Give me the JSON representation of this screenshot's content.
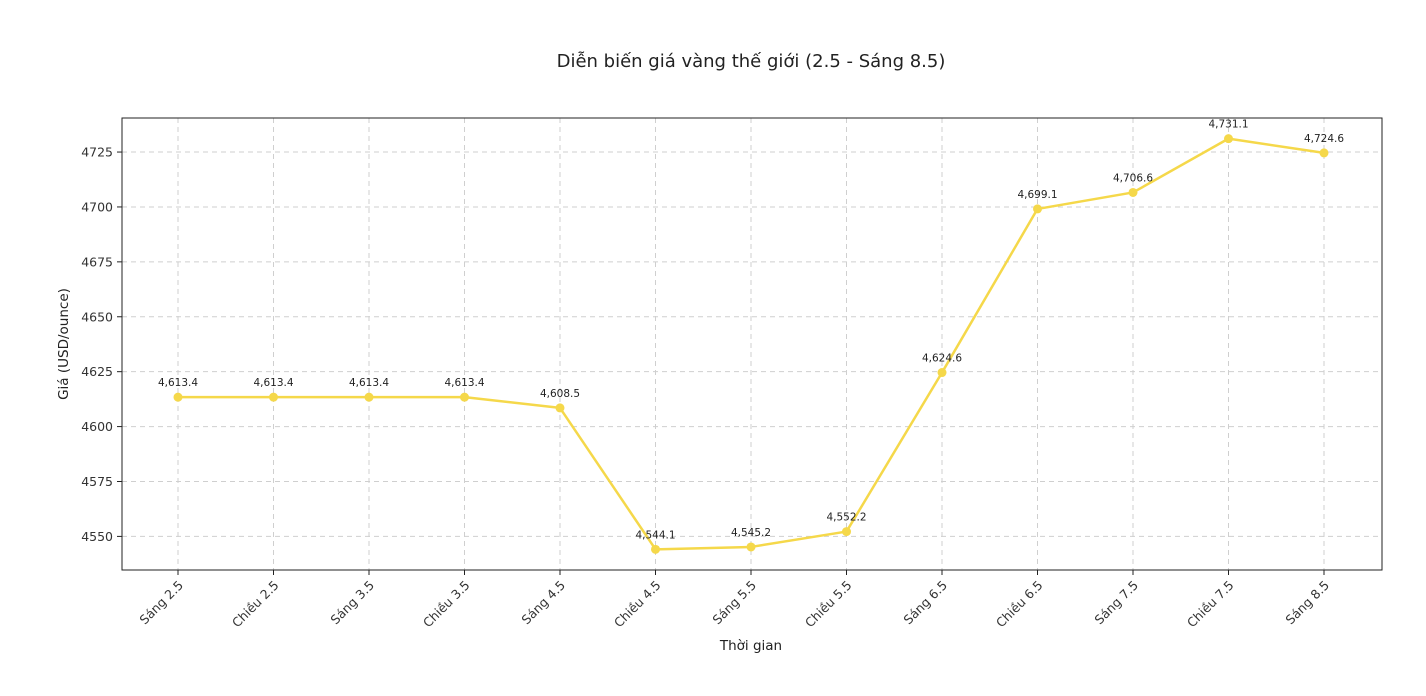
{
  "chart_data": {
    "type": "line",
    "title": "Diễn biến giá vàng thế giới (2.5 - Sáng 8.5)",
    "xlabel": "Thời gian",
    "ylabel": "Giá (USD/ounce)",
    "categories": [
      "Sáng 2.5",
      "Chiều 2.5",
      "Sáng 3.5",
      "Chiều 3.5",
      "Sáng 4.5",
      "Chiều 4.5",
      "Sáng 5.5",
      "Chiều 5.5",
      "Sáng 6.5",
      "Chiều 6.5",
      "Sáng 7.5",
      "Chiều 7.5",
      "Sáng 8.5"
    ],
    "series": [
      {
        "values": [
          4613.4,
          4613.4,
          4613.4,
          4613.4,
          4608.5,
          4544.1,
          4545.2,
          4552.2,
          4624.6,
          4699.1,
          4706.6,
          4731.1,
          4724.6
        ],
        "labels": [
          "4,613.4",
          "4,613.4",
          "4,613.4",
          "4,613.4",
          "4,608.5",
          "4,544.1",
          "4,545.2",
          "4,552.2",
          "4,624.6",
          "4,699.1",
          "4,706.6",
          "4,731.1",
          "4,724.6"
        ],
        "color": "#f5d84a"
      }
    ],
    "yticks": [
      4550,
      4575,
      4600,
      4625,
      4650,
      4675,
      4700,
      4725
    ],
    "ylim": [
      4534.7,
      4740.5
    ],
    "grid": true,
    "legend": "none"
  }
}
